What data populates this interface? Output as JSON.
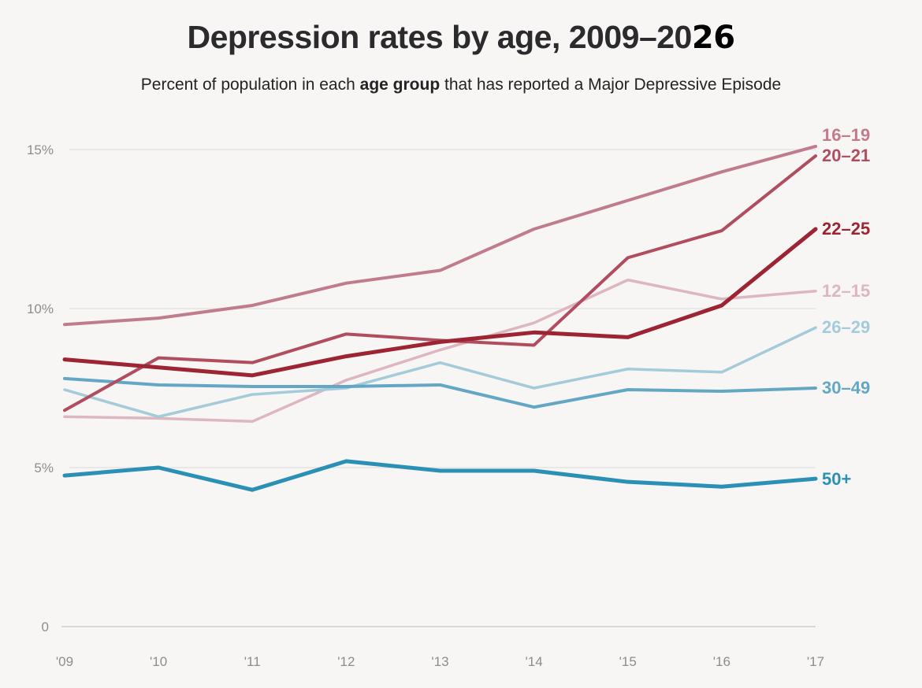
{
  "title": {
    "main": "Depression rates by age, 2009–20",
    "suffix": "26"
  },
  "subtitle": {
    "pre": "Percent of population in each ",
    "bold": "age group",
    "post": " that has reported a Major Depressive Episode"
  },
  "chart_data": {
    "type": "line",
    "title": "Depression rates by age, 2009–2026",
    "subtitle": "Percent of population in each age group that has reported a Major Depressive Episode",
    "x_labels": [
      "'09",
      "'10",
      "'11",
      "'12",
      "'13",
      "'14",
      "'15",
      "'16",
      "'17"
    ],
    "years": [
      2009,
      2010,
      2011,
      2012,
      2013,
      2014,
      2015,
      2016,
      2017
    ],
    "y_ticks": [
      {
        "value": 15,
        "label": "15%"
      },
      {
        "value": 10,
        "label": "10%"
      },
      {
        "value": 5,
        "label": "5%"
      },
      {
        "value": 0,
        "label": "0"
      }
    ],
    "ylim": [
      0,
      15.5
    ],
    "unit": "percent",
    "grid": true,
    "legend_position": "right-end-of-lines",
    "series": [
      {
        "id": "12-15",
        "label": "12–15",
        "color": "#ddb6bf",
        "bold": false,
        "width": 3.5,
        "values": [
          6.6,
          6.55,
          6.45,
          7.75,
          8.7,
          9.55,
          10.9,
          10.3,
          10.55
        ]
      },
      {
        "id": "16-19",
        "label": "16–19",
        "color": "#c07c8c",
        "bold": false,
        "width": 4,
        "values": [
          9.5,
          9.7,
          10.1,
          10.8,
          11.2,
          12.5,
          13.4,
          14.3,
          15.1
        ]
      },
      {
        "id": "26-29",
        "label": "26–29",
        "color": "#a4cbda",
        "bold": false,
        "width": 3.5,
        "values": [
          7.45,
          6.6,
          7.3,
          7.5,
          8.3,
          7.5,
          8.1,
          8.0,
          9.4
        ]
      },
      {
        "id": "30-49",
        "label": "30–49",
        "color": "#64a7c4",
        "bold": false,
        "width": 4,
        "values": [
          7.8,
          7.6,
          7.55,
          7.55,
          7.6,
          6.9,
          7.45,
          7.4,
          7.5
        ]
      },
      {
        "id": "20-21",
        "label": "20–21",
        "color": "#b04d5f",
        "bold": false,
        "width": 4,
        "values": [
          6.8,
          8.45,
          8.3,
          9.2,
          9.0,
          8.85,
          11.6,
          12.45,
          14.8
        ]
      },
      {
        "id": "22-25",
        "label": "22–25",
        "color": "#9c2433",
        "bold": true,
        "width": 5,
        "values": [
          8.4,
          8.15,
          7.9,
          8.5,
          8.95,
          9.25,
          9.1,
          10.1,
          12.5
        ]
      },
      {
        "id": "50-plus",
        "label": "50+",
        "color": "#2a90b5",
        "bold": true,
        "width": 5,
        "values": [
          4.75,
          5.0,
          4.3,
          5.2,
          4.9,
          4.9,
          4.55,
          4.4,
          4.65
        ]
      }
    ]
  }
}
